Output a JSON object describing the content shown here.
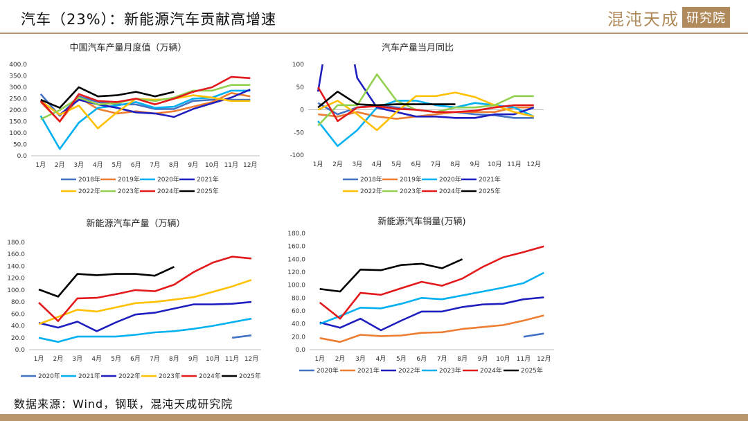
{
  "header": {
    "title": "汽车（23%）：新能源汽车贡献高增速",
    "logo_main": "混沌天成",
    "logo_box": "研究院"
  },
  "source_note": "数据来源：Wind，钢联，混沌天成研究院",
  "colors": {
    "accent": "#b8956a",
    "y2018": "#4472c4",
    "y2019": "#ed7d31",
    "y2020": "#00b0f0",
    "y2021": "#1f1fbf",
    "y2022": "#ffc000",
    "y2023": "#92d050",
    "y2024": "#e31a1c",
    "y2025": "#000000"
  },
  "chart_data": [
    {
      "id": "c1",
      "type": "line",
      "title": "中国汽车产量月度值（万辆）",
      "categories": [
        "1月",
        "2月",
        "3月",
        "4月",
        "5月",
        "6月",
        "7月",
        "8月",
        "9月",
        "10月",
        "11月",
        "12月"
      ],
      "ylim": [
        0,
        400
      ],
      "yticks": [
        "0.0",
        "50.0",
        "100.0",
        "150.0",
        "200.0",
        "250.0",
        "300.0",
        "350.0",
        "400.0"
      ],
      "ytick_values": [
        0,
        50,
        100,
        150,
        200,
        250,
        300,
        350,
        400
      ],
      "series": [
        {
          "name": "2018年",
          "color": "#4472c4",
          "values": [
            270,
            175,
            260,
            235,
            225,
            225,
            205,
            205,
            240,
            245,
            245,
            245
          ]
        },
        {
          "name": "2019年",
          "color": "#ed7d31",
          "values": [
            235,
            150,
            255,
            205,
            185,
            195,
            185,
            195,
            215,
            235,
            275,
            260
          ]
        },
        {
          "name": "2020年",
          "color": "#00b0f0",
          "values": [
            175,
            30,
            145,
            210,
            220,
            235,
            210,
            215,
            250,
            255,
            285,
            285
          ]
        },
        {
          "name": "2021年",
          "color": "#1f1fbf",
          "values": [
            240,
            180,
            245,
            225,
            210,
            190,
            185,
            170,
            205,
            230,
            255,
            290
          ]
        },
        {
          "name": "2022年",
          "color": "#ffc000",
          "values": [
            240,
            180,
            220,
            120,
            190,
            250,
            245,
            250,
            265,
            255,
            240,
            240
          ]
        },
        {
          "name": "2023年",
          "color": "#92d050",
          "values": [
            160,
            200,
            255,
            225,
            230,
            250,
            240,
            255,
            285,
            285,
            310,
            310
          ]
        },
        {
          "name": "2024年",
          "color": "#e31a1c",
          "values": [
            240,
            150,
            270,
            240,
            235,
            250,
            225,
            250,
            280,
            300,
            345,
            340
          ]
        },
        {
          "name": "2025年",
          "color": "#000000",
          "values": [
            245,
            210,
            300,
            260,
            265,
            280,
            260,
            280,
            null,
            null,
            null,
            null
          ]
        }
      ]
    },
    {
      "id": "c2",
      "type": "line",
      "title": "汽车产量当月同比",
      "categories": [
        "1月",
        "2月",
        "3月",
        "4月",
        "5月",
        "6月",
        "7月",
        "8月",
        "9月",
        "10月",
        "11月",
        "12月"
      ],
      "ylim": [
        -100,
        100
      ],
      "yticks": [
        "-100",
        "-50",
        "0",
        "50",
        "100"
      ],
      "ytick_values": [
        -100,
        -50,
        0,
        50,
        100
      ],
      "series": [
        {
          "name": "2018年",
          "color": "#4472c4",
          "values": [
            15,
            -10,
            5,
            10,
            5,
            0,
            -5,
            -5,
            -10,
            -12,
            -18,
            -18
          ]
        },
        {
          "name": "2019年",
          "color": "#ed7d31",
          "values": [
            -10,
            -15,
            -5,
            -15,
            -20,
            -15,
            -10,
            -5,
            -5,
            -5,
            5,
            5
          ]
        },
        {
          "name": "2020年",
          "color": "#00b0f0",
          "values": [
            -25,
            -80,
            -45,
            5,
            20,
            20,
            10,
            5,
            15,
            10,
            5,
            -15
          ]
        },
        {
          "name": "2021年",
          "color": "#1f1fbf",
          "values": [
            40,
            300,
            70,
            5,
            -5,
            -15,
            -15,
            -18,
            -18,
            -10,
            -10,
            5
          ]
        },
        {
          "name": "2022年",
          "color": "#ffc000",
          "values": [
            0,
            20,
            -10,
            -45,
            -5,
            30,
            30,
            38,
            28,
            10,
            -5,
            -15
          ]
        },
        {
          "name": "2023年",
          "color": "#92d050",
          "values": [
            -35,
            10,
            10,
            78,
            20,
            0,
            -5,
            5,
            5,
            10,
            30,
            30
          ]
        },
        {
          "name": "2024年",
          "color": "#e31a1c",
          "values": [
            50,
            -25,
            5,
            8,
            2,
            0,
            -5,
            -5,
            -2,
            5,
            10,
            10
          ]
        },
        {
          "name": "2025年",
          "color": "#000000",
          "values": [
            5,
            40,
            12,
            10,
            12,
            12,
            12,
            12,
            null,
            null,
            null,
            null
          ]
        }
      ]
    },
    {
      "id": "c3",
      "type": "line",
      "title": "新能源汽车产量（万辆）",
      "categories": [
        "1月",
        "2月",
        "3月",
        "4月",
        "5月",
        "6月",
        "7月",
        "8月",
        "9月",
        "10月",
        "11月",
        "12月"
      ],
      "ylim": [
        0,
        180
      ],
      "yticks": [
        "0.0",
        "20.0",
        "40.0",
        "60.0",
        "80.0",
        "100.0",
        "120.0",
        "140.0",
        "160.0",
        "180.0"
      ],
      "ytick_values": [
        0,
        20,
        40,
        60,
        80,
        100,
        120,
        140,
        160,
        180
      ],
      "series": [
        {
          "name": "2020年",
          "color": "#4472c4",
          "values": [
            null,
            null,
            null,
            null,
            null,
            null,
            null,
            null,
            null,
            null,
            20,
            24
          ]
        },
        {
          "name": "2021年",
          "color": "#00b0f0",
          "values": [
            20,
            13,
            22,
            22,
            22,
            25,
            29,
            31,
            35,
            40,
            46,
            52
          ]
        },
        {
          "name": "2022年",
          "color": "#1f1fbf",
          "values": [
            45,
            37,
            47,
            31,
            46,
            59,
            62,
            69,
            76,
            76,
            77,
            80
          ]
        },
        {
          "name": "2023年",
          "color": "#ffc000",
          "values": [
            43,
            55,
            67,
            64,
            71,
            78,
            80,
            84,
            88,
            97,
            106,
            117
          ]
        },
        {
          "name": "2024年",
          "color": "#e31a1c",
          "values": [
            79,
            48,
            86,
            87,
            93,
            100,
            98,
            109,
            130,
            146,
            156,
            153
          ]
        },
        {
          "name": "2025年",
          "color": "#000000",
          "values": [
            101,
            89,
            127,
            125,
            127,
            127,
            124,
            139,
            null,
            null,
            null,
            null
          ]
        }
      ]
    },
    {
      "id": "c4",
      "type": "line",
      "title": "新能源汽车销量(万辆)",
      "categories": [
        "1月",
        "2月",
        "3月",
        "4月",
        "5月",
        "6月",
        "7月",
        "8月",
        "9月",
        "10月",
        "11月",
        "12月"
      ],
      "ylim": [
        0,
        180
      ],
      "yticks": [
        "0.0",
        "20.0",
        "40.0",
        "60.0",
        "80.0",
        "100.0",
        "120.0",
        "140.0",
        "160.0",
        "180.0"
      ],
      "ytick_values": [
        0,
        20,
        40,
        60,
        80,
        100,
        120,
        140,
        160,
        180
      ],
      "series": [
        {
          "name": "2020年",
          "color": "#4472c4",
          "values": [
            null,
            null,
            null,
            null,
            null,
            null,
            null,
            null,
            null,
            null,
            20,
            25
          ]
        },
        {
          "name": "2021年",
          "color": "#ed7d31",
          "values": [
            18,
            12,
            23,
            21,
            22,
            26,
            27,
            32,
            35,
            38,
            45,
            53
          ]
        },
        {
          "name": "2022年",
          "color": "#1f1fbf",
          "values": [
            42,
            34,
            48,
            30,
            45,
            59,
            59,
            66,
            70,
            71,
            78,
            81
          ]
        },
        {
          "name": "2023年",
          "color": "#00b0f0",
          "values": [
            40,
            52,
            65,
            64,
            71,
            80,
            78,
            84,
            90,
            96,
            103,
            119
          ]
        },
        {
          "name": "2024年",
          "color": "#e31a1c",
          "values": [
            73,
            48,
            88,
            85,
            95,
            105,
            99,
            110,
            128,
            143,
            151,
            160
          ]
        },
        {
          "name": "2025年",
          "color": "#000000",
          "values": [
            94,
            90,
            124,
            123,
            131,
            133,
            126,
            140,
            null,
            null,
            null,
            null
          ]
        }
      ]
    }
  ]
}
